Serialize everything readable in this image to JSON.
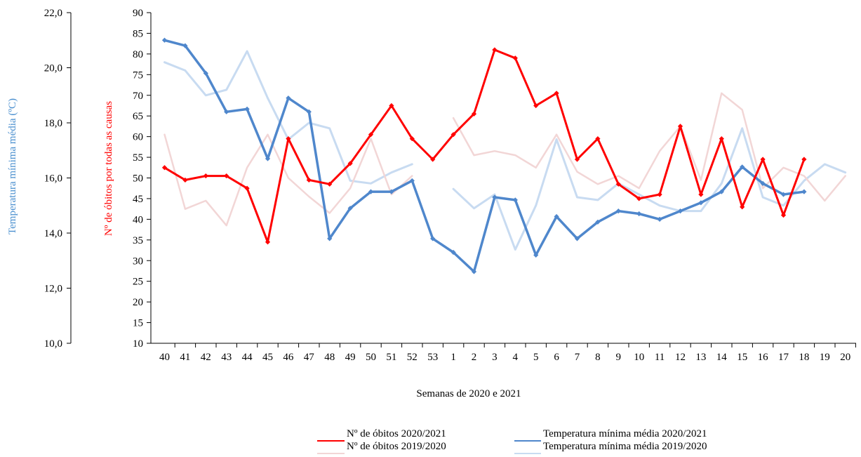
{
  "chart_data": {
    "type": "line",
    "xlabel": "Semanas de 2020 e 2021",
    "ylabel_left": "Temperatura mínima média (ºC)",
    "ylabel_right": "Nº de óbitos por todas as causas",
    "categories": [
      "40",
      "41",
      "42",
      "43",
      "44",
      "45",
      "46",
      "47",
      "48",
      "49",
      "50",
      "51",
      "52",
      "53",
      "1",
      "2",
      "3",
      "4",
      "5",
      "6",
      "7",
      "8",
      "9",
      "10",
      "11",
      "12",
      "13",
      "14",
      "15",
      "16",
      "17",
      "18",
      "19",
      "20"
    ],
    "y_temp": {
      "lim": [
        10,
        22
      ],
      "ticks": [
        "10,0",
        "12,0",
        "14,0",
        "16,0",
        "18,0",
        "20,0",
        "22,0"
      ],
      "values": [
        10,
        12,
        14,
        16,
        18,
        20,
        22
      ]
    },
    "y_deaths": {
      "lim": [
        10,
        90
      ],
      "ticks": [
        10,
        15,
        20,
        25,
        30,
        35,
        40,
        45,
        50,
        55,
        60,
        65,
        70,
        75,
        80,
        85,
        90
      ]
    },
    "series": [
      {
        "name": "Nº de óbitos 2020/2021",
        "axis": "deaths",
        "color": "#ff0000",
        "width": 3,
        "markers": true,
        "values": [
          52.5,
          49.5,
          50.5,
          50.5,
          47.5,
          34.5,
          59.5,
          49.5,
          48.5,
          53.5,
          60.5,
          67.5,
          59.5,
          54.5,
          60.5,
          65.5,
          81,
          79,
          67.5,
          70.5,
          54.5,
          59.5,
          48.5,
          45,
          46,
          62.5,
          46,
          59.5,
          43,
          54.5,
          41,
          54.5,
          null,
          null
        ]
      },
      {
        "name": "Nº de óbitos 2019/2020",
        "axis": "deaths",
        "color": "#f2d6d6",
        "width": 2.5,
        "markers": false,
        "values": [
          60.5,
          42.5,
          44.5,
          38.5,
          52.5,
          60.5,
          50,
          45.5,
          41.5,
          47.5,
          59.5,
          46,
          50.5,
          null,
          64.5,
          55.5,
          56.5,
          55.5,
          52.5,
          60.5,
          51.5,
          48.5,
          50.5,
          47.5,
          56.5,
          62.5,
          49.5,
          70.5,
          66.5,
          47.5,
          52.5,
          50.5,
          44.5,
          50.5
        ]
      },
      {
        "name": "Temperatura mínima média 2020/2021",
        "axis": "temp",
        "color": "#4f87cc",
        "width": 3.5,
        "markers": true,
        "values": [
          21.0,
          20.8,
          19.8,
          18.4,
          18.5,
          16.7,
          18.9,
          18.4,
          13.8,
          14.9,
          15.5,
          15.5,
          15.9,
          13.8,
          13.3,
          12.6,
          15.3,
          15.2,
          13.2,
          14.6,
          13.8,
          14.4,
          14.8,
          14.7,
          14.5,
          14.8,
          15.1,
          15.5,
          16.4,
          15.8,
          15.4,
          15.5,
          null,
          null
        ]
      },
      {
        "name": "Temperatura mínima média 2019/2020",
        "axis": "temp",
        "color": "#c8dbf1",
        "width": 3,
        "markers": false,
        "values": [
          20.2,
          19.9,
          19.0,
          19.2,
          20.6,
          18.9,
          17.4,
          18.0,
          17.8,
          15.9,
          15.8,
          16.2,
          16.5,
          null,
          15.6,
          14.9,
          15.4,
          13.4,
          15.0,
          17.4,
          15.3,
          15.2,
          15.8,
          15.4,
          15.0,
          14.8,
          14.8,
          15.8,
          17.8,
          15.3,
          15.0,
          15.9,
          16.5,
          16.2
        ]
      }
    ],
    "legend": {
      "placement": "bottom",
      "items": [
        "Nº de óbitos 2020/2021",
        "Nº de óbitos 2019/2020",
        "Temperatura mínima média 2020/2021",
        "Temperatura mínima média 2019/2020"
      ]
    },
    "colors": {
      "deaths_axis_title": "#ff0000",
      "temp_axis_title": "#4a8fcf"
    },
    "grid": false
  }
}
